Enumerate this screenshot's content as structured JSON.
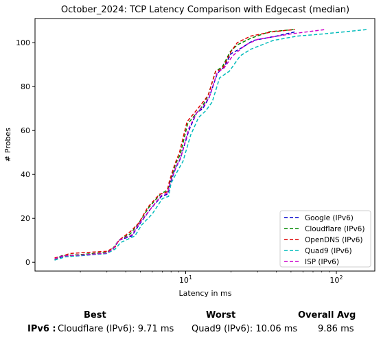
{
  "chart_data": {
    "type": "line",
    "title": "October_2024: TCP Latency Comparison with Edgecast (median)",
    "xlabel": "Latency in ms",
    "ylabel": "# Probes",
    "xscale": "log",
    "xlim": [
      1.0,
      180
    ],
    "ylim": [
      -4,
      111
    ],
    "xticks": [
      {
        "value": 10,
        "label": "10^1"
      },
      {
        "value": 100,
        "label": "10^2"
      }
    ],
    "yticks": [
      0,
      20,
      40,
      60,
      80,
      100
    ],
    "grid": false,
    "legend_position": "lower-right",
    "series": [
      {
        "name": "Google (IPv6)",
        "color": "#0000cc",
        "points": [
          [
            1.35,
            1
          ],
          [
            1.5,
            2.5
          ],
          [
            2.0,
            3
          ],
          [
            3.0,
            4
          ],
          [
            3.3,
            6
          ],
          [
            3.6,
            10
          ],
          [
            4.4,
            12
          ],
          [
            4.9,
            17
          ],
          [
            5.8,
            24
          ],
          [
            6.9,
            30
          ],
          [
            7.6,
            31
          ],
          [
            7.9,
            36
          ],
          [
            8.6,
            43
          ],
          [
            9.2,
            47
          ],
          [
            10.5,
            60
          ],
          [
            11.8,
            68
          ],
          [
            13,
            70
          ],
          [
            14.3,
            75
          ],
          [
            16.2,
            86
          ],
          [
            18,
            89
          ],
          [
            20,
            95
          ],
          [
            24,
            98
          ],
          [
            28,
            101
          ],
          [
            40,
            103
          ],
          [
            54,
            105
          ]
        ]
      },
      {
        "name": "Cloudflare (IPv6)",
        "color": "#008800",
        "points": [
          [
            1.35,
            1
          ],
          [
            1.5,
            3
          ],
          [
            2.0,
            3.5
          ],
          [
            3.0,
            4.5
          ],
          [
            3.3,
            6.5
          ],
          [
            3.6,
            10
          ],
          [
            4.3,
            13
          ],
          [
            4.9,
            18
          ],
          [
            5.7,
            25
          ],
          [
            6.8,
            31
          ],
          [
            7.6,
            33
          ],
          [
            7.9,
            37
          ],
          [
            8.6,
            45
          ],
          [
            9.2,
            49
          ],
          [
            10.3,
            63
          ],
          [
            11.5,
            67
          ],
          [
            12.9,
            71
          ],
          [
            14.1,
            76
          ],
          [
            15.8,
            87
          ],
          [
            17.5,
            89
          ],
          [
            19.8,
            96
          ],
          [
            22,
            99
          ],
          [
            27,
            102
          ],
          [
            36,
            105
          ],
          [
            53,
            106
          ]
        ]
      },
      {
        "name": "OpenDNS (IPv6)",
        "color": "#dd0000",
        "points": [
          [
            1.35,
            2
          ],
          [
            1.55,
            3
          ],
          [
            1.7,
            4
          ],
          [
            2.0,
            4.3
          ],
          [
            3.0,
            5
          ],
          [
            3.4,
            7
          ],
          [
            3.6,
            10
          ],
          [
            4.3,
            14
          ],
          [
            4.9,
            18
          ],
          [
            5.6,
            25
          ],
          [
            6.7,
            31
          ],
          [
            7.5,
            32
          ],
          [
            7.8,
            37
          ],
          [
            8.5,
            45
          ],
          [
            9.1,
            50
          ],
          [
            10.2,
            64
          ],
          [
            11.4,
            68
          ],
          [
            12.7,
            72
          ],
          [
            14.1,
            76
          ],
          [
            15.8,
            87
          ],
          [
            17.5,
            88
          ],
          [
            20,
            96
          ],
          [
            22,
            100
          ],
          [
            27,
            103
          ],
          [
            38,
            105
          ],
          [
            53,
            106
          ]
        ]
      },
      {
        "name": "Quad9 (IPv6)",
        "color": "#00bbbb",
        "points": [
          [
            1.35,
            1
          ],
          [
            1.6,
            2.5
          ],
          [
            2.1,
            3.2
          ],
          [
            3.0,
            4
          ],
          [
            3.4,
            6
          ],
          [
            3.7,
            9
          ],
          [
            4.6,
            12
          ],
          [
            5.1,
            17
          ],
          [
            6.0,
            22
          ],
          [
            7.0,
            29
          ],
          [
            7.7,
            30
          ],
          [
            8.0,
            36
          ],
          [
            8.9,
            42
          ],
          [
            9.6,
            46
          ],
          [
            10.8,
            58
          ],
          [
            12.2,
            66
          ],
          [
            13.6,
            69
          ],
          [
            15.0,
            73
          ],
          [
            16.8,
            84
          ],
          [
            19.5,
            87
          ],
          [
            23,
            94
          ],
          [
            27,
            97
          ],
          [
            32,
            99
          ],
          [
            38,
            101
          ],
          [
            55,
            103
          ],
          [
            82,
            104
          ],
          [
            115,
            105
          ],
          [
            160,
            106
          ]
        ]
      },
      {
        "name": "ISP (IPv6)",
        "color": "#cc00cc",
        "points": [
          [
            1.35,
            1.5
          ],
          [
            1.5,
            2.8
          ],
          [
            2.0,
            3.3
          ],
          [
            3.0,
            4.2
          ],
          [
            3.3,
            6.2
          ],
          [
            3.6,
            10
          ],
          [
            4.4,
            12.5
          ],
          [
            4.9,
            17.5
          ],
          [
            5.8,
            24
          ],
          [
            6.9,
            30.5
          ],
          [
            7.6,
            31.5
          ],
          [
            7.9,
            36.5
          ],
          [
            8.7,
            44
          ],
          [
            9.3,
            48
          ],
          [
            10.5,
            61
          ],
          [
            11.8,
            68
          ],
          [
            13.1,
            71
          ],
          [
            14.4,
            75.5
          ],
          [
            16.2,
            86.5
          ],
          [
            18,
            88.5
          ],
          [
            20.5,
            94
          ],
          [
            25,
            99
          ],
          [
            30,
            101.5
          ],
          [
            50,
            104
          ],
          [
            85,
            106
          ]
        ]
      }
    ]
  },
  "summary": {
    "best_header": "Best",
    "worst_header": "Worst",
    "avg_header": "Overall Avg",
    "row_label": "IPv6 :",
    "best_value": "Cloudflare (IPv6): 9.71 ms",
    "worst_value": "Quad9 (IPv6): 10.06 ms",
    "avg_value": "9.86 ms"
  }
}
